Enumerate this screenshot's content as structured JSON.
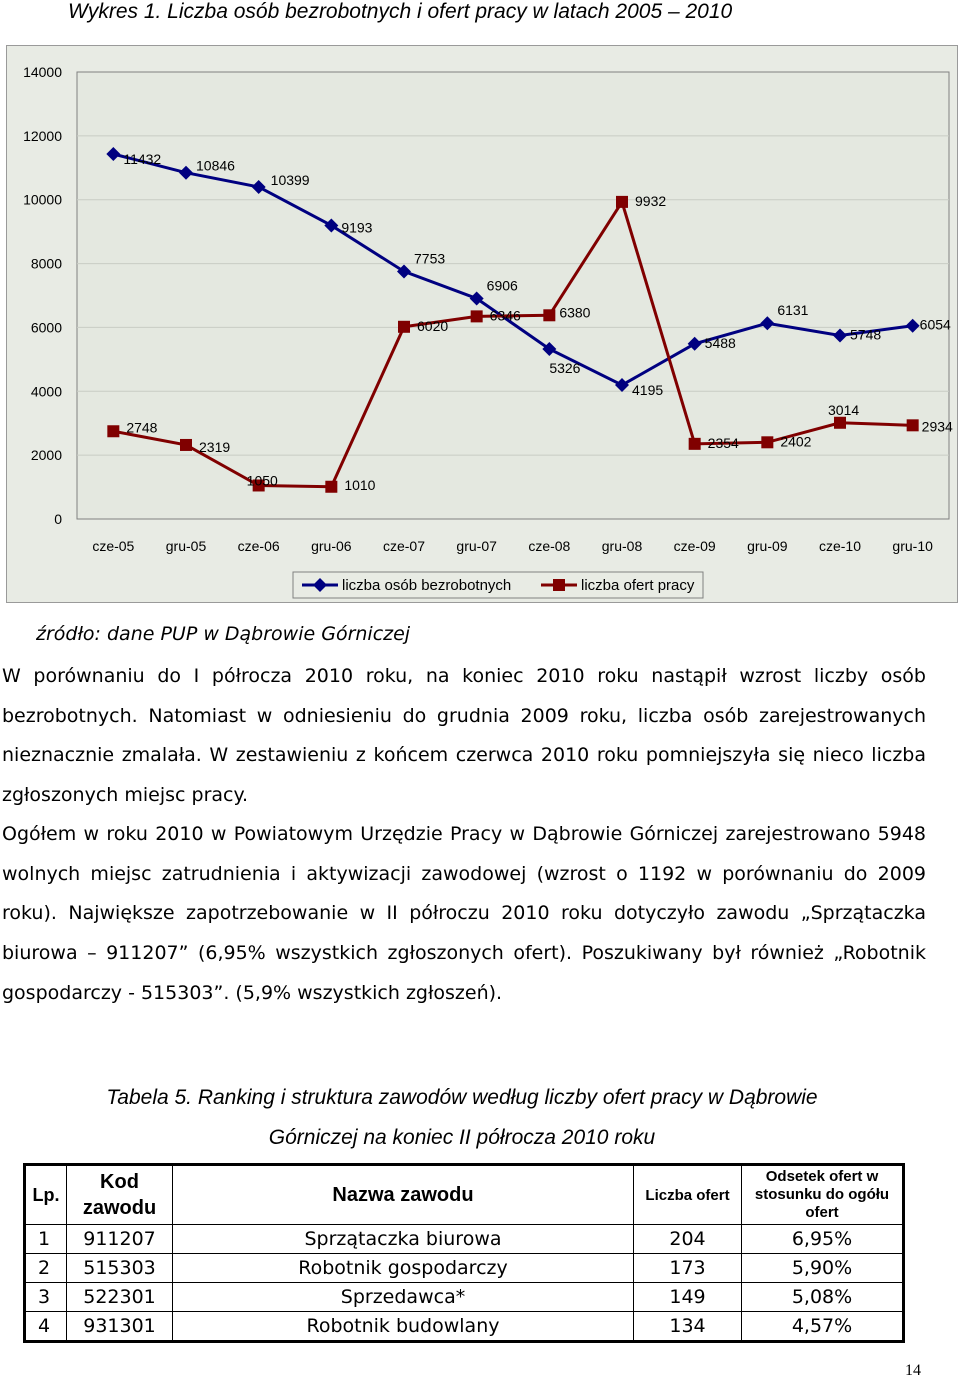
{
  "chart_title": "Wykres 1. Liczba osób bezrobotnych i ofert pracy w latach 2005 – 2010",
  "chart_data": {
    "type": "line",
    "categories": [
      "cze-05",
      "gru-05",
      "cze-06",
      "gru-06",
      "cze-07",
      "gru-07",
      "cze-08",
      "gru-08",
      "cze-09",
      "gru-09",
      "cze-10",
      "gru-10"
    ],
    "ylim": [
      0,
      14000
    ],
    "yticks": [
      0,
      2000,
      4000,
      6000,
      8000,
      10000,
      12000,
      14000
    ],
    "grid": true,
    "legend_position": "bottom",
    "series": [
      {
        "name": "liczba osób bezrobotnych",
        "color": "#000080",
        "marker": "diamond",
        "values": [
          11432,
          10846,
          10399,
          9193,
          7753,
          6906,
          5326,
          4195,
          5488,
          6131,
          5748,
          6054
        ]
      },
      {
        "name": "liczba ofert pracy",
        "color": "#800000",
        "marker": "square",
        "values": [
          2748,
          2319,
          1050,
          1010,
          6020,
          6346,
          6380,
          9932,
          2354,
          2402,
          3014,
          2934
        ]
      }
    ]
  },
  "source": "źródło: dane PUP w Dąbrowie Górniczej",
  "paragraph1": "W porównaniu do I półrocza 2010 roku, na koniec 2010 roku nastąpił wzrost liczby osób bezrobotnych. Natomiast w odniesieniu do grudnia 2009 roku, liczba osób zarejestrowanych nieznacznie zmalała. W zestawieniu z końcem czerwca 2010 roku pomniejszyła się nieco liczba zgłoszonych miejsc pracy.",
  "paragraph2": "Ogółem w roku 2010 w Powiatowym Urzędzie Pracy w Dąbrowie Górniczej zarejestrowano 5948 wolnych miejsc zatrudnienia i aktywizacji zawodowej (wzrost o 1192 w porównaniu do 2009 roku). Największe zapotrzebowanie w II półroczu 2010 roku dotyczyło zawodu „Sprzątaczka biurowa – 911207” (6,95% wszystkich zgłoszonych ofert). Poszukiwany był również „Robotnik gospodarczy - 515303”. (5,9% wszystkich zgłoszeń).",
  "table_caption_line1": "Tabela 5. Ranking i struktura zawodów według liczby ofert pracy w Dąbrowie",
  "table_caption_line2": "Górniczej na koniec II półrocza 2010 roku",
  "table": {
    "headers": [
      "Lp.",
      "Kod zawodu",
      "Nazwa zawodu",
      "Liczba ofert",
      "Odsetek ofert w stosunku do ogółu ofert"
    ],
    "rows": [
      [
        "1",
        "911207",
        "Sprzątaczka biurowa",
        "204",
        "6,95%"
      ],
      [
        "2",
        "515303",
        "Robotnik gospodarczy",
        "173",
        "5,90%"
      ],
      [
        "3",
        "522301",
        "Sprzedawca*",
        "149",
        "5,08%"
      ],
      [
        "4",
        "931301",
        "Robotnik budowlany",
        "134",
        "4,57%"
      ]
    ]
  },
  "page_number": "14"
}
